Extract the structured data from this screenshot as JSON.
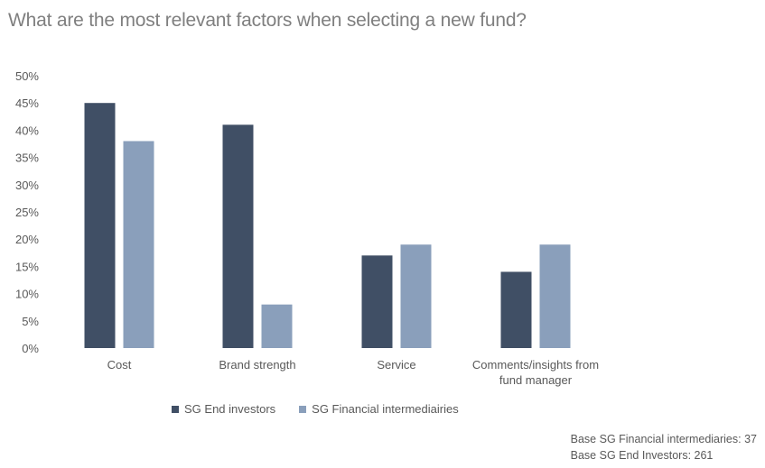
{
  "colors": {
    "series_1": "#404f65",
    "series_2": "#8a9fbb"
  },
  "chart_data": {
    "type": "bar",
    "title": "What are the most relevant factors when selecting a new fund?",
    "categories": [
      [
        "Cost"
      ],
      [
        "Brand strength"
      ],
      [
        "Service"
      ],
      [
        "Comments/insights from",
        "fund manager"
      ]
    ],
    "series": [
      {
        "name": "SG End investors",
        "values": [
          45,
          41,
          17,
          14
        ]
      },
      {
        "name": "SG Financial intermediairies",
        "values": [
          38,
          8,
          19,
          19
        ]
      }
    ],
    "ylim": [
      0,
      50
    ],
    "yticks": [
      "0%",
      "5%",
      "10%",
      "15%",
      "20%",
      "25%",
      "30%",
      "35%",
      "40%",
      "45%",
      "50%"
    ],
    "grid": false,
    "legend_position": "bottom"
  },
  "footnotes": [
    "Base SG Financial intermediaries: 37",
    "Base SG End Investors: 261"
  ]
}
